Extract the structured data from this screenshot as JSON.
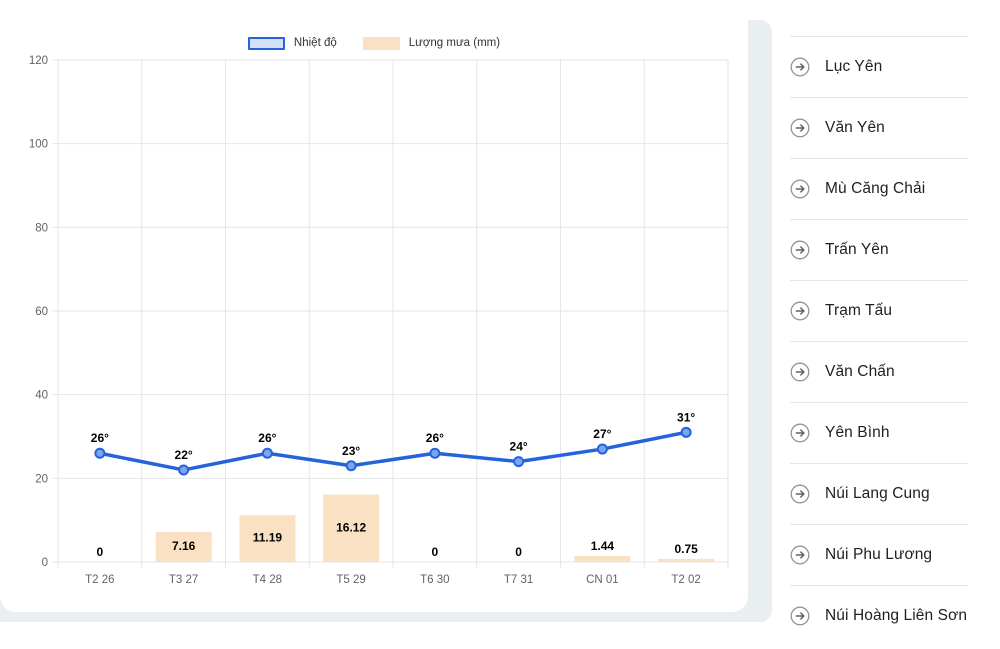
{
  "chart_data": {
    "type": "line+bar combo",
    "categories": [
      "T2 26",
      "T3 27",
      "T4 28",
      "T5 29",
      "T6 30",
      "T7 31",
      "CN 01",
      "T2 02"
    ],
    "series": [
      {
        "name": "Nhiệt độ",
        "type": "line",
        "values": [
          26,
          22,
          26,
          23,
          26,
          24,
          27,
          31
        ],
        "point_labels": [
          "26°",
          "22°",
          "26°",
          "23°",
          "26°",
          "24°",
          "27°",
          "31°"
        ],
        "color": "#2563dd",
        "marker_fill": "#7ba6ee"
      },
      {
        "name": "Lượng mưa (mm)",
        "type": "bar",
        "values": [
          0,
          7.16,
          11.19,
          16.12,
          0,
          0,
          1.44,
          0.75
        ],
        "value_labels": [
          "0",
          "7.16",
          "11.19",
          "16.12",
          "0",
          "0",
          "1.44",
          "0.75"
        ],
        "color": "#fbe1c3"
      }
    ],
    "ylim": [
      0,
      120
    ],
    "yticks": [
      0,
      20,
      40,
      60,
      80,
      100,
      120
    ],
    "grid": true,
    "legend_position": "top",
    "label_color": "#000000",
    "tick_color": "#5f6368",
    "grid_color": "#e4e6e8"
  },
  "legend": {
    "items": [
      {
        "label": "Nhiệt độ",
        "fill": "#d4e0f6",
        "border": "#2563dd"
      },
      {
        "label": "Lượng mưa (mm)",
        "fill": "#fbe1c3",
        "border": "none"
      }
    ]
  },
  "sidebar": {
    "items": [
      {
        "label": "Lục Yên"
      },
      {
        "label": "Văn Yên"
      },
      {
        "label": "Mù Căng Chải"
      },
      {
        "label": "Trấn Yên"
      },
      {
        "label": "Trạm Tấu"
      },
      {
        "label": "Văn Chấn"
      },
      {
        "label": "Yên Bình"
      },
      {
        "label": "Núi Lang Cung"
      },
      {
        "label": "Núi Phu Lương"
      },
      {
        "label": "Núi Hoàng Liên Sơn"
      }
    ]
  }
}
